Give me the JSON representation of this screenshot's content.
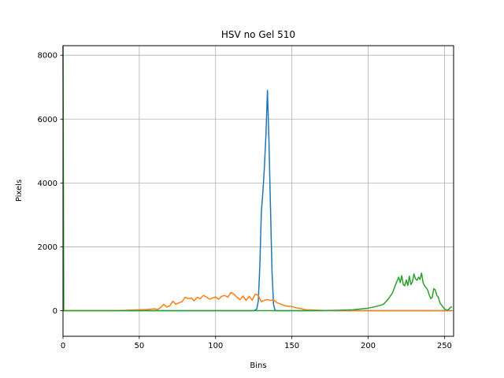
{
  "chart_data": {
    "type": "line",
    "title": "HSV no Gel 510",
    "xlabel": "Bins",
    "ylabel": "Pixels",
    "xlim": [
      0,
      256
    ],
    "ylim": [
      -800,
      8300
    ],
    "grid": true,
    "x_ticks": [
      0,
      50,
      100,
      150,
      200,
      250
    ],
    "y_ticks": [
      0,
      2000,
      4000,
      6000,
      8000
    ],
    "series": [
      {
        "color": "#1f77b4",
        "points": [
          [
            0,
            0
          ],
          [
            100,
            0
          ],
          [
            125,
            0
          ],
          [
            127,
            50
          ],
          [
            128,
            300
          ],
          [
            129,
            1400
          ],
          [
            130,
            3100
          ],
          [
            131,
            3700
          ],
          [
            132,
            4500
          ],
          [
            133,
            5500
          ],
          [
            134,
            6900
          ],
          [
            135,
            5300
          ],
          [
            136,
            3200
          ],
          [
            137,
            1200
          ],
          [
            138,
            200
          ],
          [
            139,
            0
          ],
          [
            150,
            0
          ],
          [
            200,
            0
          ],
          [
            255,
            0
          ]
        ]
      },
      {
        "color": "#ff7f0e",
        "points": [
          [
            0,
            0
          ],
          [
            30,
            0
          ],
          [
            40,
            10
          ],
          [
            45,
            20
          ],
          [
            50,
            30
          ],
          [
            55,
            40
          ],
          [
            60,
            60
          ],
          [
            62,
            40
          ],
          [
            64,
            100
          ],
          [
            66,
            200
          ],
          [
            68,
            120
          ],
          [
            70,
            150
          ],
          [
            72,
            300
          ],
          [
            74,
            200
          ],
          [
            76,
            250
          ],
          [
            78,
            280
          ],
          [
            80,
            420
          ],
          [
            82,
            380
          ],
          [
            84,
            400
          ],
          [
            86,
            310
          ],
          [
            88,
            420
          ],
          [
            90,
            380
          ],
          [
            92,
            480
          ],
          [
            94,
            430
          ],
          [
            96,
            360
          ],
          [
            98,
            400
          ],
          [
            100,
            430
          ],
          [
            102,
            360
          ],
          [
            104,
            450
          ],
          [
            106,
            480
          ],
          [
            108,
            420
          ],
          [
            110,
            570
          ],
          [
            112,
            520
          ],
          [
            114,
            420
          ],
          [
            116,
            350
          ],
          [
            118,
            460
          ],
          [
            120,
            320
          ],
          [
            122,
            450
          ],
          [
            124,
            330
          ],
          [
            126,
            520
          ],
          [
            128,
            480
          ],
          [
            130,
            280
          ],
          [
            132,
            330
          ],
          [
            134,
            350
          ],
          [
            136,
            320
          ],
          [
            138,
            340
          ],
          [
            140,
            260
          ],
          [
            142,
            220
          ],
          [
            144,
            180
          ],
          [
            146,
            150
          ],
          [
            148,
            140
          ],
          [
            150,
            130
          ],
          [
            152,
            100
          ],
          [
            154,
            80
          ],
          [
            156,
            70
          ],
          [
            158,
            40
          ],
          [
            160,
            30
          ],
          [
            165,
            20
          ],
          [
            170,
            10
          ],
          [
            180,
            5
          ],
          [
            200,
            0
          ],
          [
            255,
            0
          ]
        ]
      },
      {
        "color": "#2ca02c",
        "points": [
          [
            0,
            8300
          ],
          [
            0.5,
            0
          ],
          [
            100,
            0
          ],
          [
            150,
            0
          ],
          [
            170,
            5
          ],
          [
            180,
            15
          ],
          [
            190,
            30
          ],
          [
            196,
            60
          ],
          [
            200,
            80
          ],
          [
            204,
            120
          ],
          [
            208,
            170
          ],
          [
            210,
            200
          ],
          [
            212,
            300
          ],
          [
            214,
            420
          ],
          [
            216,
            560
          ],
          [
            218,
            820
          ],
          [
            220,
            1050
          ],
          [
            221,
            880
          ],
          [
            222,
            1100
          ],
          [
            223,
            820
          ],
          [
            224,
            780
          ],
          [
            225,
            960
          ],
          [
            226,
            790
          ],
          [
            227,
            1080
          ],
          [
            228,
            820
          ],
          [
            229,
            900
          ],
          [
            230,
            1150
          ],
          [
            231,
            1000
          ],
          [
            232,
            950
          ],
          [
            233,
            1050
          ],
          [
            234,
            980
          ],
          [
            235,
            1180
          ],
          [
            236,
            880
          ],
          [
            237,
            780
          ],
          [
            238,
            720
          ],
          [
            239,
            650
          ],
          [
            240,
            500
          ],
          [
            241,
            380
          ],
          [
            242,
            420
          ],
          [
            243,
            690
          ],
          [
            244,
            650
          ],
          [
            245,
            480
          ],
          [
            246,
            420
          ],
          [
            247,
            250
          ],
          [
            248,
            180
          ],
          [
            249,
            120
          ],
          [
            250,
            60
          ],
          [
            251,
            30
          ],
          [
            252,
            20
          ],
          [
            253,
            50
          ],
          [
            254,
            110
          ],
          [
            255,
            120
          ]
        ]
      }
    ]
  }
}
